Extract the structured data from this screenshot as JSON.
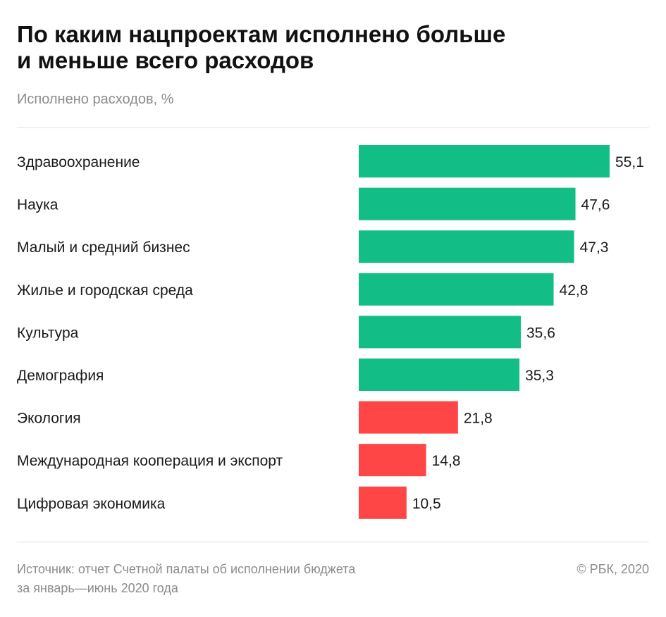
{
  "header": {
    "title_line1": "По каким нацпроектам исполнено больше",
    "title_line2": "и меньше всего расходов",
    "subtitle": "Исполнено расходов, %"
  },
  "footer": {
    "source_line1": "Источник: отчет Счетной палаты об исполнении бюджета",
    "source_line2": "за январь—июнь 2020 года",
    "copyright": "© РБК, 2020"
  },
  "colors": {
    "high": "#13bd86",
    "low": "#ff4646"
  },
  "chart_data": {
    "type": "bar",
    "orientation": "horizontal",
    "title": "По каким нацпроектам исполнено больше и меньше всего расходов",
    "subtitle": "Исполнено расходов, %",
    "categories": [
      "Здравоохранение",
      "Наука",
      "Малый и средний бизнес",
      "Жилье и городская среда",
      "Культура",
      "Демография",
      "Экология",
      "Международная кооперация и экспорт",
      "Цифровая экономика"
    ],
    "values": [
      55.1,
      47.6,
      47.3,
      42.8,
      35.6,
      35.3,
      21.8,
      14.8,
      10.5
    ],
    "value_labels": [
      "55,1",
      "47,6",
      "47,3",
      "42,8",
      "35,6",
      "35,3",
      "21,8",
      "14,8",
      "10,5"
    ],
    "bar_colors": [
      "high",
      "high",
      "high",
      "high",
      "high",
      "high",
      "low",
      "low",
      "low"
    ],
    "xlim": [
      0,
      55.1
    ],
    "grid": false,
    "legend": "none"
  }
}
